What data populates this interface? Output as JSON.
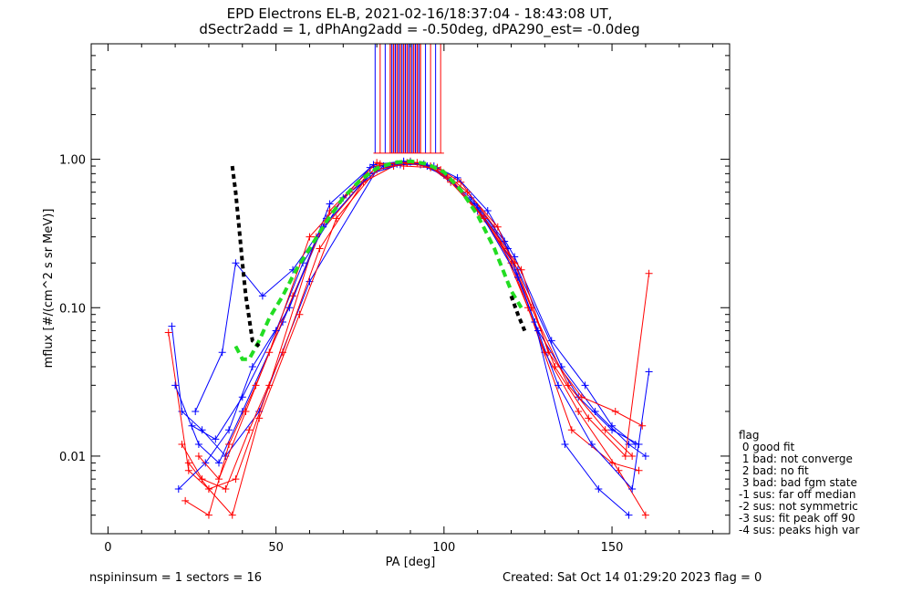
{
  "title": {
    "line1": "EPD Electrons EL-B, 2021-02-16/18:37:04 - 18:43:08 UT,",
    "line2": "dSectr2add = 1, dPhAng2add = -0.50deg, dPA290_est=  -0.0deg"
  },
  "footer": {
    "left": "nspininsum =  1  sectors = 16",
    "right": "Created: Sat Oct 14 01:29:20 2023   flag = 0"
  },
  "legend": {
    "title": "flag",
    "items": [
      " 0 good fit",
      " 1 bad: not converge",
      " 2 bad: no fit",
      " 3 bad: bad fgm state",
      "-1 sus: far off median",
      "-2 sus: not symmetric",
      "-3 sus: fit peak off 90",
      "-4 sus: peaks high var"
    ]
  },
  "colors": {
    "series_a": "#0000ff",
    "series_b": "#ff0000",
    "fit": "#22dd22",
    "median": "#000000"
  },
  "chart_data": {
    "type": "line",
    "xlabel": "PA [deg]",
    "ylabel": "mflux [#/(cm^2 s sr MeV)]",
    "xlim": [
      -5,
      185
    ],
    "ylim": [
      0.003,
      6.0
    ],
    "yscale": "log",
    "x_ticks": [
      0,
      50,
      100,
      150
    ],
    "x_tick_labels": [
      "0",
      "50",
      "100",
      "150"
    ],
    "y_ticks": [
      0.01,
      0.1,
      1.0
    ],
    "y_tick_labels": [
      "0.01",
      "0.10",
      "1.00"
    ],
    "grid": false,
    "legend_position": "right-outside",
    "fit_curve": {
      "x": [
        38,
        40,
        42,
        45,
        48,
        52,
        56,
        60,
        65,
        70,
        75,
        80,
        85,
        90,
        95,
        100,
        105,
        110,
        115,
        120,
        123
      ],
      "y": [
        0.055,
        0.045,
        0.045,
        0.06,
        0.085,
        0.12,
        0.18,
        0.25,
        0.38,
        0.55,
        0.72,
        0.87,
        0.95,
        0.97,
        0.93,
        0.82,
        0.62,
        0.42,
        0.25,
        0.13,
        0.1
      ]
    },
    "median_curve": {
      "x": [
        37,
        38,
        39,
        40,
        41,
        42,
        43,
        45
      ],
      "y": [
        0.9,
        0.6,
        0.35,
        0.2,
        0.12,
        0.085,
        0.06,
        0.055
      ]
    },
    "median_curve_right": {
      "x": [
        120,
        122,
        124
      ],
      "y": [
        0.12,
        0.09,
        0.07
      ]
    },
    "vertical_spikes": {
      "x_range": [
        79,
        100
      ],
      "dense_range": [
        84,
        93
      ],
      "y_from": 1.1
    },
    "series": [
      {
        "x": [
          19,
          22,
          28,
          35,
          45,
          60,
          80,
          88,
          95,
          100,
          110,
          122,
          135,
          145,
          155,
          160
        ],
        "y": [
          0.075,
          0.02,
          0.015,
          0.01,
          0.02,
          0.15,
          0.85,
          0.95,
          0.9,
          0.8,
          0.45,
          0.18,
          0.04,
          0.02,
          0.012,
          0.01
        ]
      },
      {
        "x": [
          18,
          24,
          30,
          38,
          48,
          62,
          80,
          90,
          98,
          105,
          115,
          125,
          138,
          150,
          158
        ],
        "y": [
          0.068,
          0.008,
          0.006,
          0.007,
          0.03,
          0.3,
          0.9,
          0.97,
          0.88,
          0.7,
          0.35,
          0.1,
          0.015,
          0.009,
          0.008
        ]
      },
      {
        "x": [
          20,
          27,
          33,
          40,
          52,
          65,
          78,
          86,
          93,
          100,
          108,
          118,
          128,
          140,
          150,
          158
        ],
        "y": [
          0.03,
          0.012,
          0.009,
          0.02,
          0.08,
          0.4,
          0.88,
          0.93,
          0.92,
          0.78,
          0.55,
          0.28,
          0.07,
          0.025,
          0.015,
          0.012
        ]
      },
      {
        "x": [
          23,
          30,
          36,
          44,
          55,
          66,
          80,
          88,
          96,
          102,
          112,
          120,
          130,
          140,
          152,
          160
        ],
        "y": [
          0.005,
          0.004,
          0.012,
          0.03,
          0.12,
          0.45,
          0.95,
          0.9,
          0.88,
          0.7,
          0.4,
          0.2,
          0.05,
          0.02,
          0.008,
          0.004
        ]
      },
      {
        "x": [
          25,
          32,
          40,
          50,
          58,
          70,
          82,
          90,
          97,
          104,
          113,
          121,
          132,
          142,
          150,
          157
        ],
        "y": [
          0.016,
          0.013,
          0.025,
          0.07,
          0.2,
          0.55,
          0.9,
          0.96,
          0.9,
          0.75,
          0.45,
          0.22,
          0.06,
          0.03,
          0.016,
          0.012
        ]
      },
      {
        "x": [
          22,
          28,
          35,
          42,
          52,
          63,
          76,
          85,
          92,
          99,
          107,
          116,
          126,
          137,
          148,
          156
        ],
        "y": [
          0.012,
          0.007,
          0.006,
          0.015,
          0.05,
          0.25,
          0.7,
          0.9,
          0.95,
          0.85,
          0.6,
          0.35,
          0.1,
          0.03,
          0.015,
          0.01
        ]
      },
      {
        "x": [
          26,
          34,
          38,
          46,
          55,
          64,
          78,
          87,
          94,
          100,
          109,
          119,
          127,
          136,
          146,
          155
        ],
        "y": [
          0.02,
          0.05,
          0.2,
          0.12,
          0.18,
          0.35,
          0.8,
          0.92,
          0.93,
          0.8,
          0.5,
          0.25,
          0.08,
          0.012,
          0.006,
          0.004
        ]
      },
      {
        "x": [
          24,
          30,
          37,
          45,
          57,
          68,
          80,
          89,
          96,
          101,
          111,
          121,
          133,
          143,
          154,
          161
        ],
        "y": [
          0.009,
          0.006,
          0.004,
          0.018,
          0.09,
          0.4,
          0.85,
          0.94,
          0.9,
          0.75,
          0.42,
          0.2,
          0.04,
          0.018,
          0.01,
          0.17
        ]
      },
      {
        "x": [
          21,
          29,
          36,
          43,
          54,
          66,
          79,
          88,
          95,
          102,
          110,
          122,
          134,
          144,
          156,
          161
        ],
        "y": [
          0.006,
          0.009,
          0.015,
          0.04,
          0.1,
          0.5,
          0.92,
          0.97,
          0.9,
          0.72,
          0.47,
          0.16,
          0.03,
          0.012,
          0.006,
          0.037
        ]
      },
      {
        "x": [
          27,
          33,
          41,
          48,
          60,
          72,
          81,
          89,
          96,
          103,
          112,
          123,
          131,
          141,
          151,
          159
        ],
        "y": [
          0.01,
          0.007,
          0.02,
          0.05,
          0.3,
          0.6,
          0.93,
          0.95,
          0.88,
          0.7,
          0.4,
          0.18,
          0.05,
          0.025,
          0.02,
          0.016
        ]
      }
    ]
  }
}
